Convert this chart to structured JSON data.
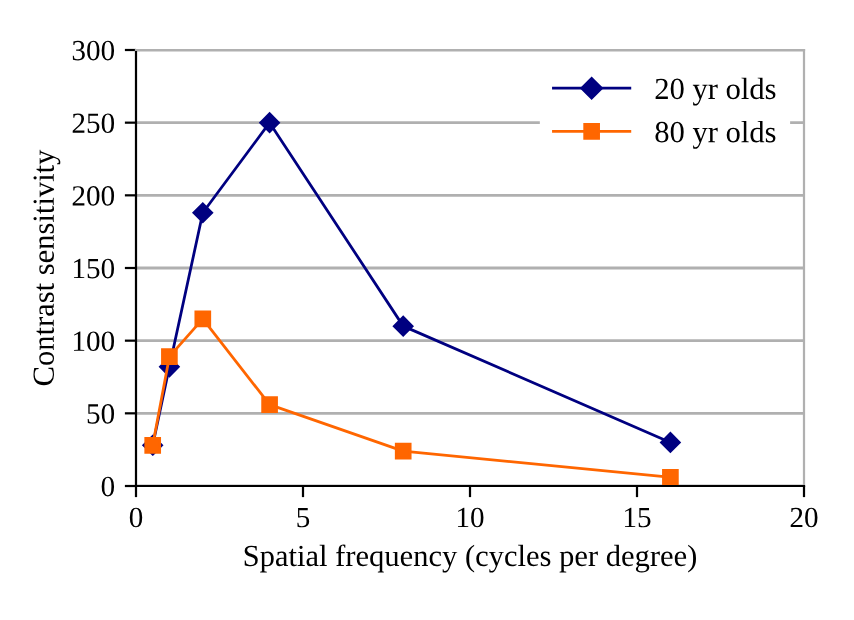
{
  "chart_data": {
    "type": "line",
    "xlabel": "Spatial frequency (cycles per degree)",
    "ylabel": "Contrast sensitivity",
    "x": [
      0.5,
      1,
      2,
      4,
      8,
      16
    ],
    "series": [
      {
        "name": "20 yr olds",
        "color": "#000080",
        "marker": "diamond",
        "values": [
          28,
          82,
          188,
          250,
          110,
          30
        ]
      },
      {
        "name": "80 yr olds",
        "color": "#ff6600",
        "marker": "square",
        "values": [
          28,
          89,
          115,
          56,
          24,
          6
        ]
      }
    ],
    "xlim": [
      0,
      20
    ],
    "xticks": [
      0,
      5,
      10,
      15,
      20
    ],
    "ylim": [
      0,
      300
    ],
    "yticks": [
      0,
      50,
      100,
      150,
      200,
      250,
      300
    ],
    "grid": "y",
    "legend": "top right",
    "line_style": "solid"
  }
}
